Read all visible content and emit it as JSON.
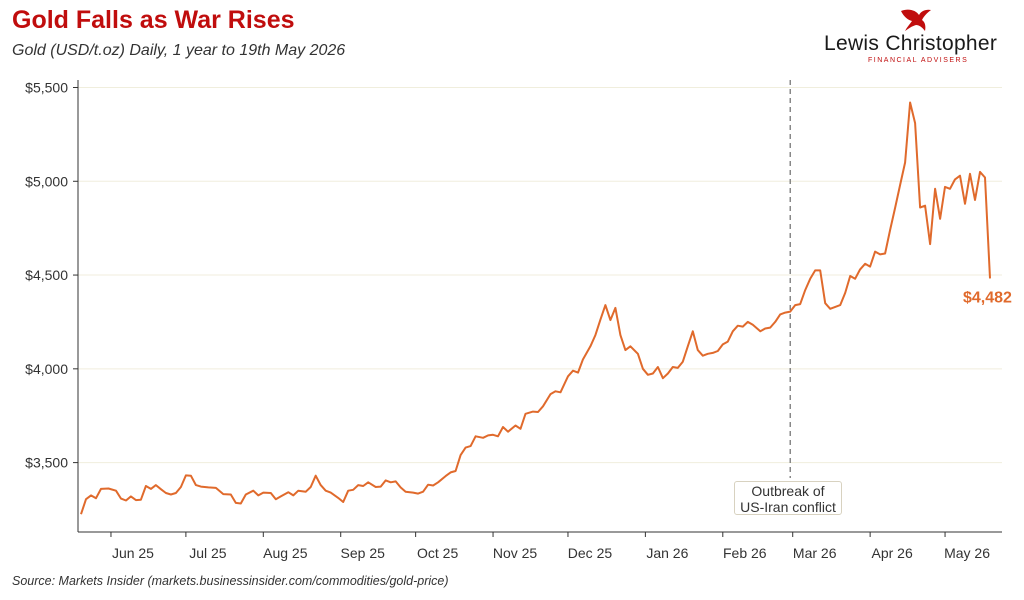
{
  "header": {
    "title": "Gold Falls as War Rises",
    "subtitle": "Gold (USD/t.oz) Daily, 1 year to 19th May 2026"
  },
  "logo": {
    "name": "Lewis Christopher",
    "tagline": "FINANCIAL ADVISERS",
    "icon": "winged-lion-icon",
    "color": "#c00d0d"
  },
  "source": "Source: Markets Insider (markets.businessinsider.com/commodities/gold-price)",
  "colors": {
    "line": "#e06a2c",
    "title": "#c00d0d",
    "grid": "#f0eedd",
    "annotation_line": "#777777"
  },
  "chart_data": {
    "type": "line",
    "x_tick_labels": [
      "Jun 25",
      "Jul 25",
      "Aug 25",
      "Sep 25",
      "Oct 25",
      "Nov 25",
      "Dec 25",
      "Jan 26",
      "Feb 26",
      "Mar 26",
      "Apr 26",
      "May 26"
    ],
    "x_range": [
      "2025-05-20",
      "2026-05-19"
    ],
    "y_ticks": [
      3500,
      4000,
      4500,
      5000,
      5500
    ],
    "y_tick_labels": [
      "$3,500",
      "$4,000",
      "$4,500",
      "$5,000",
      "$5,500"
    ],
    "ylim": [
      3130,
      5540
    ],
    "grid": "horizontal",
    "end_label": "$4,482",
    "annotation": {
      "date": "2026-02-28",
      "text_line1": "Outbreak of",
      "text_line2": "US-Iran conflict"
    },
    "series": [
      {
        "values": [
          [
            "2025-05-20",
            3225
          ],
          [
            "2025-05-22",
            3305
          ],
          [
            "2025-05-24",
            3325
          ],
          [
            "2025-05-26",
            3310
          ],
          [
            "2025-05-28",
            3360
          ],
          [
            "2025-05-31",
            3362
          ],
          [
            "2025-06-03",
            3350
          ],
          [
            "2025-06-05",
            3308
          ],
          [
            "2025-06-07",
            3298
          ],
          [
            "2025-06-09",
            3320
          ],
          [
            "2025-06-11",
            3300
          ],
          [
            "2025-06-13",
            3302
          ],
          [
            "2025-06-15",
            3375
          ],
          [
            "2025-06-17",
            3360
          ],
          [
            "2025-06-19",
            3380
          ],
          [
            "2025-06-21",
            3358
          ],
          [
            "2025-06-23",
            3338
          ],
          [
            "2025-06-25",
            3330
          ],
          [
            "2025-06-27",
            3338
          ],
          [
            "2025-06-29",
            3370
          ],
          [
            "2025-07-01",
            3432
          ],
          [
            "2025-07-03",
            3430
          ],
          [
            "2025-07-05",
            3380
          ],
          [
            "2025-07-07",
            3372
          ],
          [
            "2025-07-10",
            3368
          ],
          [
            "2025-07-13",
            3365
          ],
          [
            "2025-07-16",
            3332
          ],
          [
            "2025-07-19",
            3330
          ],
          [
            "2025-07-21",
            3285
          ],
          [
            "2025-07-23",
            3282
          ],
          [
            "2025-07-25",
            3330
          ],
          [
            "2025-07-28",
            3350
          ],
          [
            "2025-07-30",
            3325
          ],
          [
            "2025-08-01",
            3340
          ],
          [
            "2025-08-04",
            3338
          ],
          [
            "2025-08-06",
            3305
          ],
          [
            "2025-08-08",
            3320
          ],
          [
            "2025-08-11",
            3342
          ],
          [
            "2025-08-13",
            3325
          ],
          [
            "2025-08-15",
            3350
          ],
          [
            "2025-08-18",
            3345
          ],
          [
            "2025-08-20",
            3370
          ],
          [
            "2025-08-22",
            3430
          ],
          [
            "2025-08-24",
            3380
          ],
          [
            "2025-08-26",
            3350
          ],
          [
            "2025-08-28",
            3340
          ],
          [
            "2025-08-31",
            3312
          ],
          [
            "2025-09-02",
            3290
          ],
          [
            "2025-09-04",
            3350
          ],
          [
            "2025-09-06",
            3355
          ],
          [
            "2025-09-08",
            3380
          ],
          [
            "2025-09-10",
            3375
          ],
          [
            "2025-09-12",
            3395
          ],
          [
            "2025-09-15",
            3370
          ],
          [
            "2025-09-17",
            3372
          ],
          [
            "2025-09-19",
            3405
          ],
          [
            "2025-09-21",
            3395
          ],
          [
            "2025-09-23",
            3400
          ],
          [
            "2025-09-25",
            3368
          ],
          [
            "2025-09-27",
            3345
          ],
          [
            "2025-09-30",
            3340
          ],
          [
            "2025-10-02",
            3335
          ],
          [
            "2025-10-04",
            3345
          ],
          [
            "2025-10-06",
            3382
          ],
          [
            "2025-10-08",
            3378
          ],
          [
            "2025-10-10",
            3395
          ],
          [
            "2025-10-13",
            3428
          ],
          [
            "2025-10-15",
            3448
          ],
          [
            "2025-10-17",
            3455
          ],
          [
            "2025-10-19",
            3540
          ],
          [
            "2025-10-21",
            3580
          ],
          [
            "2025-10-23",
            3588
          ],
          [
            "2025-10-25",
            3640
          ],
          [
            "2025-10-28",
            3632
          ],
          [
            "2025-10-30",
            3645
          ],
          [
            "2025-11-01",
            3648
          ],
          [
            "2025-11-03",
            3640
          ],
          [
            "2025-11-05",
            3690
          ],
          [
            "2025-11-07",
            3665
          ],
          [
            "2025-11-10",
            3698
          ],
          [
            "2025-11-12",
            3680
          ],
          [
            "2025-11-14",
            3760
          ],
          [
            "2025-11-17",
            3772
          ],
          [
            "2025-11-19",
            3770
          ],
          [
            "2025-11-21",
            3800
          ],
          [
            "2025-11-24",
            3865
          ],
          [
            "2025-11-26",
            3880
          ],
          [
            "2025-11-28",
            3875
          ],
          [
            "2025-12-01",
            3960
          ],
          [
            "2025-12-03",
            3990
          ],
          [
            "2025-12-05",
            3980
          ],
          [
            "2025-12-07",
            4050
          ],
          [
            "2025-12-10",
            4120
          ],
          [
            "2025-12-12",
            4180
          ],
          [
            "2025-12-14",
            4262
          ],
          [
            "2025-12-16",
            4340
          ],
          [
            "2025-12-18",
            4260
          ],
          [
            "2025-12-20",
            4325
          ],
          [
            "2025-12-22",
            4180
          ],
          [
            "2025-12-24",
            4100
          ],
          [
            "2025-12-26",
            4120
          ],
          [
            "2025-12-29",
            4080
          ],
          [
            "2025-12-31",
            4000
          ],
          [
            "2026-01-02",
            3968
          ],
          [
            "2026-01-04",
            3975
          ],
          [
            "2026-01-06",
            4010
          ],
          [
            "2026-01-08",
            3950
          ],
          [
            "2026-01-10",
            3975
          ],
          [
            "2026-01-12",
            4010
          ],
          [
            "2026-01-14",
            4005
          ],
          [
            "2026-01-16",
            4038
          ],
          [
            "2026-01-18",
            4120
          ],
          [
            "2026-01-20",
            4200
          ],
          [
            "2026-01-22",
            4100
          ],
          [
            "2026-01-24",
            4070
          ],
          [
            "2026-01-26",
            4080
          ],
          [
            "2026-01-28",
            4085
          ],
          [
            "2026-01-30",
            4095
          ],
          [
            "2026-02-01",
            4130
          ],
          [
            "2026-02-03",
            4145
          ],
          [
            "2026-02-05",
            4200
          ],
          [
            "2026-02-07",
            4230
          ],
          [
            "2026-02-09",
            4225
          ],
          [
            "2026-02-11",
            4250
          ],
          [
            "2026-02-13",
            4235
          ],
          [
            "2026-02-16",
            4200
          ],
          [
            "2026-02-18",
            4215
          ],
          [
            "2026-02-20",
            4220
          ],
          [
            "2026-02-22",
            4250
          ],
          [
            "2026-02-24",
            4290
          ],
          [
            "2026-02-26",
            4300
          ],
          [
            "2026-02-28",
            4305
          ],
          [
            "2026-03-02",
            4340
          ],
          [
            "2026-03-04",
            4345
          ],
          [
            "2026-03-06",
            4420
          ],
          [
            "2026-03-08",
            4480
          ],
          [
            "2026-03-10",
            4525
          ],
          [
            "2026-03-12",
            4525
          ],
          [
            "2026-03-14",
            4350
          ],
          [
            "2026-03-16",
            4320
          ],
          [
            "2026-03-18",
            4330
          ],
          [
            "2026-03-20",
            4340
          ],
          [
            "2026-03-22",
            4405
          ],
          [
            "2026-03-24",
            4495
          ],
          [
            "2026-03-26",
            4480
          ],
          [
            "2026-03-28",
            4530
          ],
          [
            "2026-03-30",
            4560
          ],
          [
            "2026-04-01",
            4545
          ],
          [
            "2026-04-03",
            4625
          ],
          [
            "2026-04-05",
            4610
          ],
          [
            "2026-04-07",
            4615
          ],
          [
            "2026-04-09",
            4740
          ],
          [
            "2026-04-11",
            4858
          ],
          [
            "2026-04-13",
            4980
          ],
          [
            "2026-04-15",
            5100
          ],
          [
            "2026-04-17",
            5420
          ],
          [
            "2026-04-19",
            5310
          ],
          [
            "2026-04-21",
            4860
          ],
          [
            "2026-04-23",
            4870
          ],
          [
            "2026-04-25",
            4665
          ],
          [
            "2026-04-27",
            4960
          ],
          [
            "2026-04-29",
            4800
          ],
          [
            "2026-05-01",
            4970
          ],
          [
            "2026-05-03",
            4960
          ],
          [
            "2026-05-05",
            5010
          ],
          [
            "2026-05-07",
            5030
          ],
          [
            "2026-05-09",
            4880
          ],
          [
            "2026-05-11",
            5040
          ],
          [
            "2026-05-13",
            4900
          ],
          [
            "2026-05-15",
            5050
          ],
          [
            "2026-05-17",
            5020
          ],
          [
            "2026-05-19",
            4482
          ]
        ]
      }
    ]
  }
}
